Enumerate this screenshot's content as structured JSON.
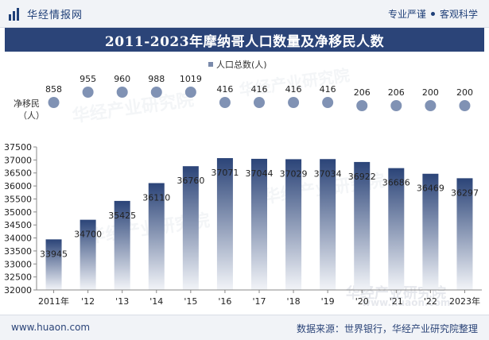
{
  "header": {
    "brand": "华经情报网",
    "slogan_left": "专业严谨",
    "slogan_right": "客观科学"
  },
  "title": "2011-2023年摩纳哥人口数量及净移民人数",
  "footer": {
    "url": "www.huaon.com",
    "source": "数据来源：世界银行，华经产业研究院整理"
  },
  "watermark": {
    "cn": "华经产业研究院",
    "en": "www.huaon.com"
  },
  "chart_data": [
    {
      "type": "bar",
      "legend": "人口总数(人)",
      "legend_position": "top-center",
      "categories": [
        "2011年",
        "'12",
        "'13",
        "'14",
        "'15",
        "'16",
        "'17",
        "'18",
        "'19",
        "'20",
        "'21",
        "'22",
        "2023年"
      ],
      "values": [
        33945,
        34700,
        35425,
        36110,
        36760,
        37071,
        37044,
        37029,
        37034,
        36922,
        36686,
        36469,
        36297
      ],
      "ylim": [
        32000,
        37500
      ],
      "yticks": [
        32000,
        32500,
        33000,
        33500,
        34000,
        34500,
        35000,
        35500,
        36000,
        36500,
        37000,
        37500
      ],
      "bar_color_top": "#2b4478",
      "bar_color_bottom": "#f2f4f8"
    },
    {
      "type": "scatter",
      "ylabel": "净移民（人）",
      "categories": [
        "2011年",
        "'12",
        "'13",
        "'14",
        "'15",
        "'16",
        "'17",
        "'18",
        "'19",
        "'20",
        "'21",
        "'22",
        "2023年"
      ],
      "values": [
        858,
        955,
        960,
        988,
        1019,
        416,
        416,
        416,
        416,
        206,
        206,
        200,
        200
      ],
      "marker_color": "#8092b4"
    }
  ]
}
